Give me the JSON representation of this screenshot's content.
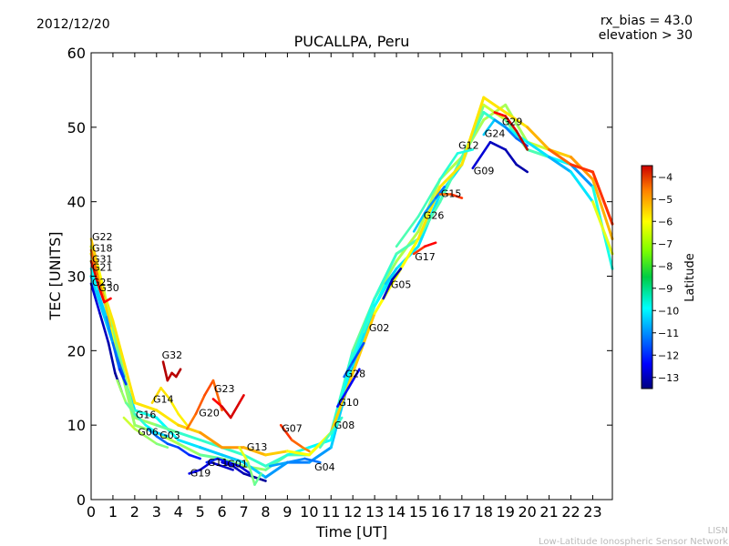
{
  "chart_data": {
    "type": "line",
    "date": "2012/12/20",
    "title": "PUCALLPA, Peru",
    "info_lines": [
      "rx_bias = 43.0",
      "elevation > 30"
    ],
    "xlabel": "Time [UT]",
    "ylabel": "TEC [UNITS]",
    "xlim": [
      0,
      23.9
    ],
    "ylim": [
      0,
      60
    ],
    "x_ticks": [
      0,
      1,
      2,
      3,
      4,
      5,
      6,
      7,
      8,
      9,
      10,
      11,
      12,
      13,
      14,
      15,
      16,
      17,
      18,
      19,
      20,
      21,
      22,
      23
    ],
    "y_ticks": [
      0,
      10,
      20,
      30,
      40,
      50,
      60
    ],
    "colorbar": {
      "label": "Latitude",
      "range": [
        -13.5,
        -3.5
      ],
      "ticks": [
        -4,
        -5,
        -6,
        -7,
        -8,
        -9,
        -10,
        -11,
        -12,
        -13
      ]
    },
    "series": [
      {
        "name": "G22",
        "label_at": [
          0.0,
          35.3
        ],
        "x": [
          0.0,
          0.3,
          0.6,
          0.9,
          1.1
        ],
        "y": [
          35.0,
          31.5,
          28.0,
          23.5,
          20.0
        ],
        "lat": [
          -6.5,
          -7.0,
          -7.5,
          -8.0,
          -8.5
        ]
      },
      {
        "name": "G18",
        "label_at": [
          0.0,
          33.8
        ],
        "x": [
          0.0,
          0.3,
          0.6,
          0.9,
          1.2
        ],
        "y": [
          33.5,
          30.0,
          27.0,
          23.0,
          18.5
        ],
        "lat": [
          -5.5,
          -6.0,
          -6.5,
          -7.0,
          -7.5
        ]
      },
      {
        "name": "G31",
        "label_at": [
          0.0,
          32.3
        ],
        "x": [
          0.0,
          0.3,
          0.6,
          0.9
        ],
        "y": [
          32.0,
          29.0,
          26.5,
          27.0
        ],
        "lat": [
          -4.2,
          -4.5,
          -5.0,
          -4.5
        ]
      },
      {
        "name": "G21",
        "label_at": [
          0.0,
          31.2
        ],
        "x": [
          0.0,
          0.4,
          0.8,
          1.2,
          1.5
        ],
        "y": [
          31.0,
          27.0,
          23.0,
          19.0,
          16.5
        ],
        "lat": [
          -9.5,
          -10.0,
          -10.5,
          -11.0,
          -11.5
        ]
      },
      {
        "name": "G25",
        "label_at": [
          0.0,
          29.2
        ],
        "x": [
          0.0,
          0.4,
          0.8,
          1.1,
          1.4
        ],
        "y": [
          29.0,
          25.0,
          21.0,
          17.0,
          14.5
        ],
        "lat": [
          -12.5,
          -12.8,
          -13.0,
          -13.2,
          -13.3
        ]
      },
      {
        "name": "G30",
        "label_at": [
          0.3,
          28.5
        ],
        "x": [
          0.3,
          0.7,
          1.0,
          1.3,
          1.6
        ],
        "y": [
          28.0,
          24.5,
          21.0,
          17.5,
          15.5
        ],
        "lat": [
          -10.0,
          -10.5,
          -11.0,
          -11.5,
          -12.0
        ]
      },
      {
        "name": "G16",
        "label_at": [
          2.0,
          11.4
        ],
        "x": [
          1.2,
          1.6,
          2.0,
          2.5,
          3.0,
          3.5
        ],
        "y": [
          16.0,
          13.0,
          11.5,
          10.0,
          9.0,
          8.5
        ],
        "lat": [
          -8.0,
          -8.5,
          -9.0,
          -9.5,
          -10.0,
          -10.5
        ]
      },
      {
        "name": "G06",
        "label_at": [
          2.1,
          9.1
        ],
        "x": [
          1.5,
          2.0,
          2.5,
          3.0,
          3.5
        ],
        "y": [
          11.0,
          9.5,
          8.5,
          7.5,
          7.0
        ],
        "lat": [
          -7.5,
          -8.0,
          -8.0,
          -8.5,
          -8.5
        ]
      },
      {
        "name": "G03",
        "label_at": [
          3.1,
          8.7
        ],
        "x": [
          2.6,
          3.0,
          3.5,
          4.0,
          4.5,
          5.0
        ],
        "y": [
          9.5,
          8.5,
          7.5,
          7.0,
          6.0,
          5.5
        ],
        "lat": [
          -10.5,
          -11.0,
          -11.5,
          -11.5,
          -12.0,
          -12.0
        ]
      },
      {
        "name": "G14",
        "label_at": [
          2.8,
          13.5
        ],
        "x": [
          2.8,
          3.2,
          3.6,
          4.0,
          4.4
        ],
        "y": [
          13.0,
          15.0,
          13.5,
          11.5,
          10.0
        ],
        "lat": [
          -6.8,
          -7.0,
          -7.0,
          -7.2,
          -7.0
        ]
      },
      {
        "name": "G32",
        "label_at": [
          3.2,
          19.4
        ],
        "x": [
          3.3,
          3.5,
          3.7,
          3.9,
          4.1
        ],
        "y": [
          18.5,
          16.0,
          17.0,
          16.5,
          17.5
        ],
        "lat": [
          -4.0,
          -4.0,
          -4.2,
          -4.0,
          -4.0
        ]
      },
      {
        "name": "G20",
        "label_at": [
          4.9,
          11.7
        ],
        "x": [
          4.4,
          4.8,
          5.2,
          5.6,
          6.0
        ],
        "y": [
          9.5,
          11.5,
          14.0,
          16.0,
          12.0
        ],
        "lat": [
          -6.0,
          -5.8,
          -5.5,
          -5.5,
          -6.0
        ]
      },
      {
        "name": "G23",
        "label_at": [
          5.6,
          14.9
        ],
        "x": [
          5.6,
          6.0,
          6.4,
          6.8,
          7.0
        ],
        "y": [
          13.5,
          12.5,
          11.0,
          13.0,
          14.0
        ],
        "lat": [
          -5.0,
          -4.5,
          -4.2,
          -4.5,
          -4.5
        ]
      },
      {
        "name": "G19",
        "label_at": [
          4.5,
          3.6
        ],
        "x": [
          4.5,
          5.0,
          5.5,
          6.0,
          6.5
        ],
        "y": [
          3.5,
          4.0,
          5.0,
          4.5,
          4.0
        ],
        "lat": [
          -12.5,
          -12.5,
          -12.8,
          -12.5,
          -13.0
        ]
      },
      {
        "name": "G11",
        "label_at": [
          5.3,
          5.0
        ],
        "x": [
          5.3,
          5.8,
          6.3,
          6.8,
          7.3
        ],
        "y": [
          5.0,
          5.5,
          5.0,
          4.5,
          3.5
        ],
        "lat": [
          -11.8,
          -12.0,
          -12.2,
          -12.5,
          -12.8
        ]
      },
      {
        "name": "G01",
        "label_at": [
          6.2,
          4.8
        ],
        "x": [
          6.0,
          6.5,
          7.0,
          7.5,
          8.0
        ],
        "y": [
          5.0,
          4.5,
          3.5,
          3.0,
          2.5
        ],
        "lat": [
          -12.5,
          -12.8,
          -13.0,
          -13.2,
          -13.3
        ]
      },
      {
        "name": "G13",
        "label_at": [
          7.1,
          7.1
        ],
        "x": [
          6.8,
          7.2,
          7.5,
          7.8
        ],
        "y": [
          7.0,
          5.0,
          2.0,
          3.5
        ],
        "lat": [
          -7.0,
          -8.0,
          -9.0,
          -8.5
        ]
      },
      {
        "name": "G07",
        "label_at": [
          8.7,
          9.6
        ],
        "x": [
          8.7,
          9.2,
          9.7,
          10.0
        ],
        "y": [
          10.0,
          8.0,
          7.0,
          6.5
        ],
        "lat": [
          -5.0,
          -5.5,
          -6.0,
          -6.0
        ]
      },
      {
        "name": "G04",
        "label_at": [
          10.2,
          4.4
        ],
        "x": [
          8.2,
          9.0,
          9.8,
          10.5
        ],
        "y": [
          4.5,
          5.0,
          5.5,
          5.0
        ],
        "lat": [
          -10.5,
          -10.8,
          -11.0,
          -11.2
        ]
      },
      {
        "name": "G08",
        "label_at": [
          11.1,
          10.0
        ],
        "x": [
          10.5,
          11.0,
          11.5
        ],
        "y": [
          7.0,
          9.0,
          11.0
        ],
        "lat": [
          -9.0,
          -9.0,
          -9.5
        ]
      },
      {
        "name": "G10",
        "label_at": [
          11.3,
          13.1
        ],
        "x": [
          11.3,
          11.8,
          12.3
        ],
        "y": [
          12.5,
          15.0,
          17.5
        ],
        "lat": [
          -12.0,
          -12.2,
          -12.5
        ]
      },
      {
        "name": "G28",
        "label_at": [
          11.6,
          16.9
        ],
        "x": [
          11.6,
          12.0,
          12.5
        ],
        "y": [
          16.5,
          18.5,
          21.0
        ],
        "lat": [
          -11.0,
          -11.5,
          -11.5
        ]
      },
      {
        "name": "G02",
        "label_at": [
          12.7,
          23.1
        ],
        "x": [
          12.5,
          13.0,
          13.5,
          14.0
        ],
        "y": [
          22.5,
          26.0,
          29.0,
          31.0
        ],
        "lat": [
          -9.0,
          -9.5,
          -10.0,
          -10.5
        ]
      },
      {
        "name": "G05",
        "label_at": [
          13.7,
          28.9
        ],
        "x": [
          13.4,
          13.8,
          14.2
        ],
        "y": [
          27.0,
          29.5,
          31.0
        ],
        "lat": [
          -12.8,
          -13.0,
          -13.2
        ]
      },
      {
        "name": "G17",
        "label_at": [
          14.8,
          32.6
        ],
        "x": [
          14.8,
          15.3,
          15.8
        ],
        "y": [
          33.0,
          34.0,
          34.5
        ],
        "lat": [
          -5.5,
          -5.0,
          -4.5
        ]
      },
      {
        "name": "G26",
        "label_at": [
          15.2,
          38.2
        ],
        "x": [
          14.8,
          15.3,
          15.8,
          16.2
        ],
        "y": [
          36.0,
          38.5,
          40.5,
          42.0
        ],
        "lat": [
          -10.0,
          -10.5,
          -11.0,
          -11.2
        ]
      },
      {
        "name": "G15",
        "label_at": [
          16.0,
          41.1
        ],
        "x": [
          16.0,
          16.5,
          17.0
        ],
        "y": [
          41.0,
          41.0,
          40.5
        ],
        "lat": [
          -6.0,
          -5.5,
          -5.0
        ]
      },
      {
        "name": "G12",
        "label_at": [
          16.8,
          47.6
        ],
        "x": [
          14.0,
          15.0,
          16.0,
          16.8,
          17.5
        ],
        "y": [
          34.0,
          38.0,
          43.0,
          46.5,
          47.0
        ],
        "lat": [
          -9.0,
          -9.0,
          -9.2,
          -9.5,
          -9.5
        ]
      },
      {
        "name": "G09",
        "label_at": [
          17.5,
          44.2
        ],
        "x": [
          17.5,
          18.3,
          19.0,
          19.5,
          20.0
        ],
        "y": [
          44.5,
          48.0,
          47.0,
          45.0,
          44.0
        ],
        "lat": [
          -12.5,
          -12.8,
          -13.0,
          -13.0,
          -13.2
        ]
      },
      {
        "name": "G24",
        "label_at": [
          18.0,
          49.2
        ],
        "x": [
          18.0,
          18.5,
          19.0,
          19.5,
          20.0
        ],
        "y": [
          49.0,
          51.0,
          50.0,
          48.5,
          47.5
        ],
        "lat": [
          -10.0,
          -10.5,
          -11.0,
          -11.0,
          -11.5
        ]
      },
      {
        "name": "G29",
        "label_at": [
          18.8,
          50.8
        ],
        "x": [
          18.5,
          19.0,
          19.5,
          20.0
        ],
        "y": [
          52.0,
          51.5,
          49.5,
          47.0
        ],
        "lat": [
          -5.0,
          -4.5,
          -4.2,
          -4.0
        ]
      }
    ],
    "trends": [
      {
        "name": "main-trend-1",
        "x": [
          0,
          1,
          2,
          3,
          4,
          5,
          6,
          7,
          8,
          9,
          10,
          11,
          12,
          13,
          14,
          15,
          16,
          17,
          18,
          19,
          20,
          21,
          22,
          23,
          23.9
        ],
        "y": [
          34,
          22,
          10,
          9,
          7.5,
          6,
          5.5,
          4.5,
          4,
          6,
          6,
          9,
          20,
          27,
          32,
          36,
          43,
          46,
          51,
          53,
          48,
          47,
          46,
          43,
          35
        ],
        "lat": [
          -7.5,
          -8,
          -8.5,
          -8,
          -8,
          -8.5,
          -9,
          -8,
          -8.5,
          -9,
          -9,
          -9.5,
          -9,
          -8.5,
          -8,
          -8,
          -8,
          -8,
          -8.2,
          -7.8,
          -8.5,
          -7,
          -6.5,
          -6,
          -7
        ]
      },
      {
        "name": "main-trend-2",
        "x": [
          0,
          1,
          2,
          3,
          4,
          5,
          6,
          7,
          8,
          9,
          10,
          11,
          12,
          13,
          14,
          15,
          16,
          17,
          18,
          19,
          20,
          21,
          22,
          23,
          23.9
        ],
        "y": [
          30,
          21,
          12,
          11,
          8,
          7,
          6,
          5,
          3,
          5,
          5,
          7,
          18,
          26,
          31,
          34,
          41,
          45,
          53,
          51,
          47,
          46,
          45,
          42,
          31
        ],
        "lat": [
          -10,
          -10.5,
          -9.5,
          -9.5,
          -10,
          -10,
          -10.5,
          -10,
          -10.5,
          -11,
          -11,
          -10.5,
          -10,
          -10,
          -10,
          -10,
          -10,
          -10,
          -7,
          -8.5,
          -9,
          -9,
          -10.5,
          -11,
          -8
        ]
      },
      {
        "name": "main-trend-3",
        "x": [
          0,
          1,
          2,
          3,
          4,
          5,
          6,
          7,
          8,
          9,
          10,
          11,
          12,
          13,
          14,
          15,
          16,
          17,
          18,
          19,
          20,
          21,
          22,
          23,
          23.9
        ],
        "y": [
          32,
          23,
          11,
          10,
          9,
          8,
          7,
          6,
          4.5,
          6,
          7,
          8,
          19,
          27,
          33,
          35,
          40,
          46,
          52,
          50,
          48,
          46,
          44,
          40,
          33
        ],
        "lat": [
          -8.5,
          -9,
          -8,
          -8.5,
          -9,
          -9.5,
          -9,
          -9.5,
          -9,
          -9.5,
          -9.5,
          -10,
          -9.5,
          -9.5,
          -9,
          -9,
          -9,
          -9,
          -9,
          -9.5,
          -10,
          -10,
          -11,
          -9,
          -6
        ]
      },
      {
        "name": "main-trend-4",
        "x": [
          0,
          1,
          2,
          3,
          4,
          5,
          6,
          7,
          8,
          9,
          10,
          11,
          12,
          13,
          14,
          15,
          16,
          17,
          18,
          19,
          20,
          21,
          22,
          23,
          23.9
        ],
        "y": [
          33,
          24,
          13,
          12,
          10,
          9,
          7,
          7,
          6,
          6.5,
          6,
          9,
          17,
          25,
          30,
          35,
          42,
          45,
          54,
          52,
          50,
          47,
          45,
          44,
          37
        ],
        "lat": [
          -7,
          -7,
          -7,
          -7,
          -7,
          -6.5,
          -6,
          -6.5,
          -6.5,
          -7,
          -7.5,
          -7,
          -6.5,
          -7,
          -7.5,
          -7,
          -7,
          -7,
          -7,
          -7,
          -7,
          -6,
          -5.5,
          -5,
          -5.5
        ]
      }
    ]
  },
  "footer": {
    "org": "LISN",
    "org_full": "Low-Latitude Ionospheric Sensor Network"
  }
}
